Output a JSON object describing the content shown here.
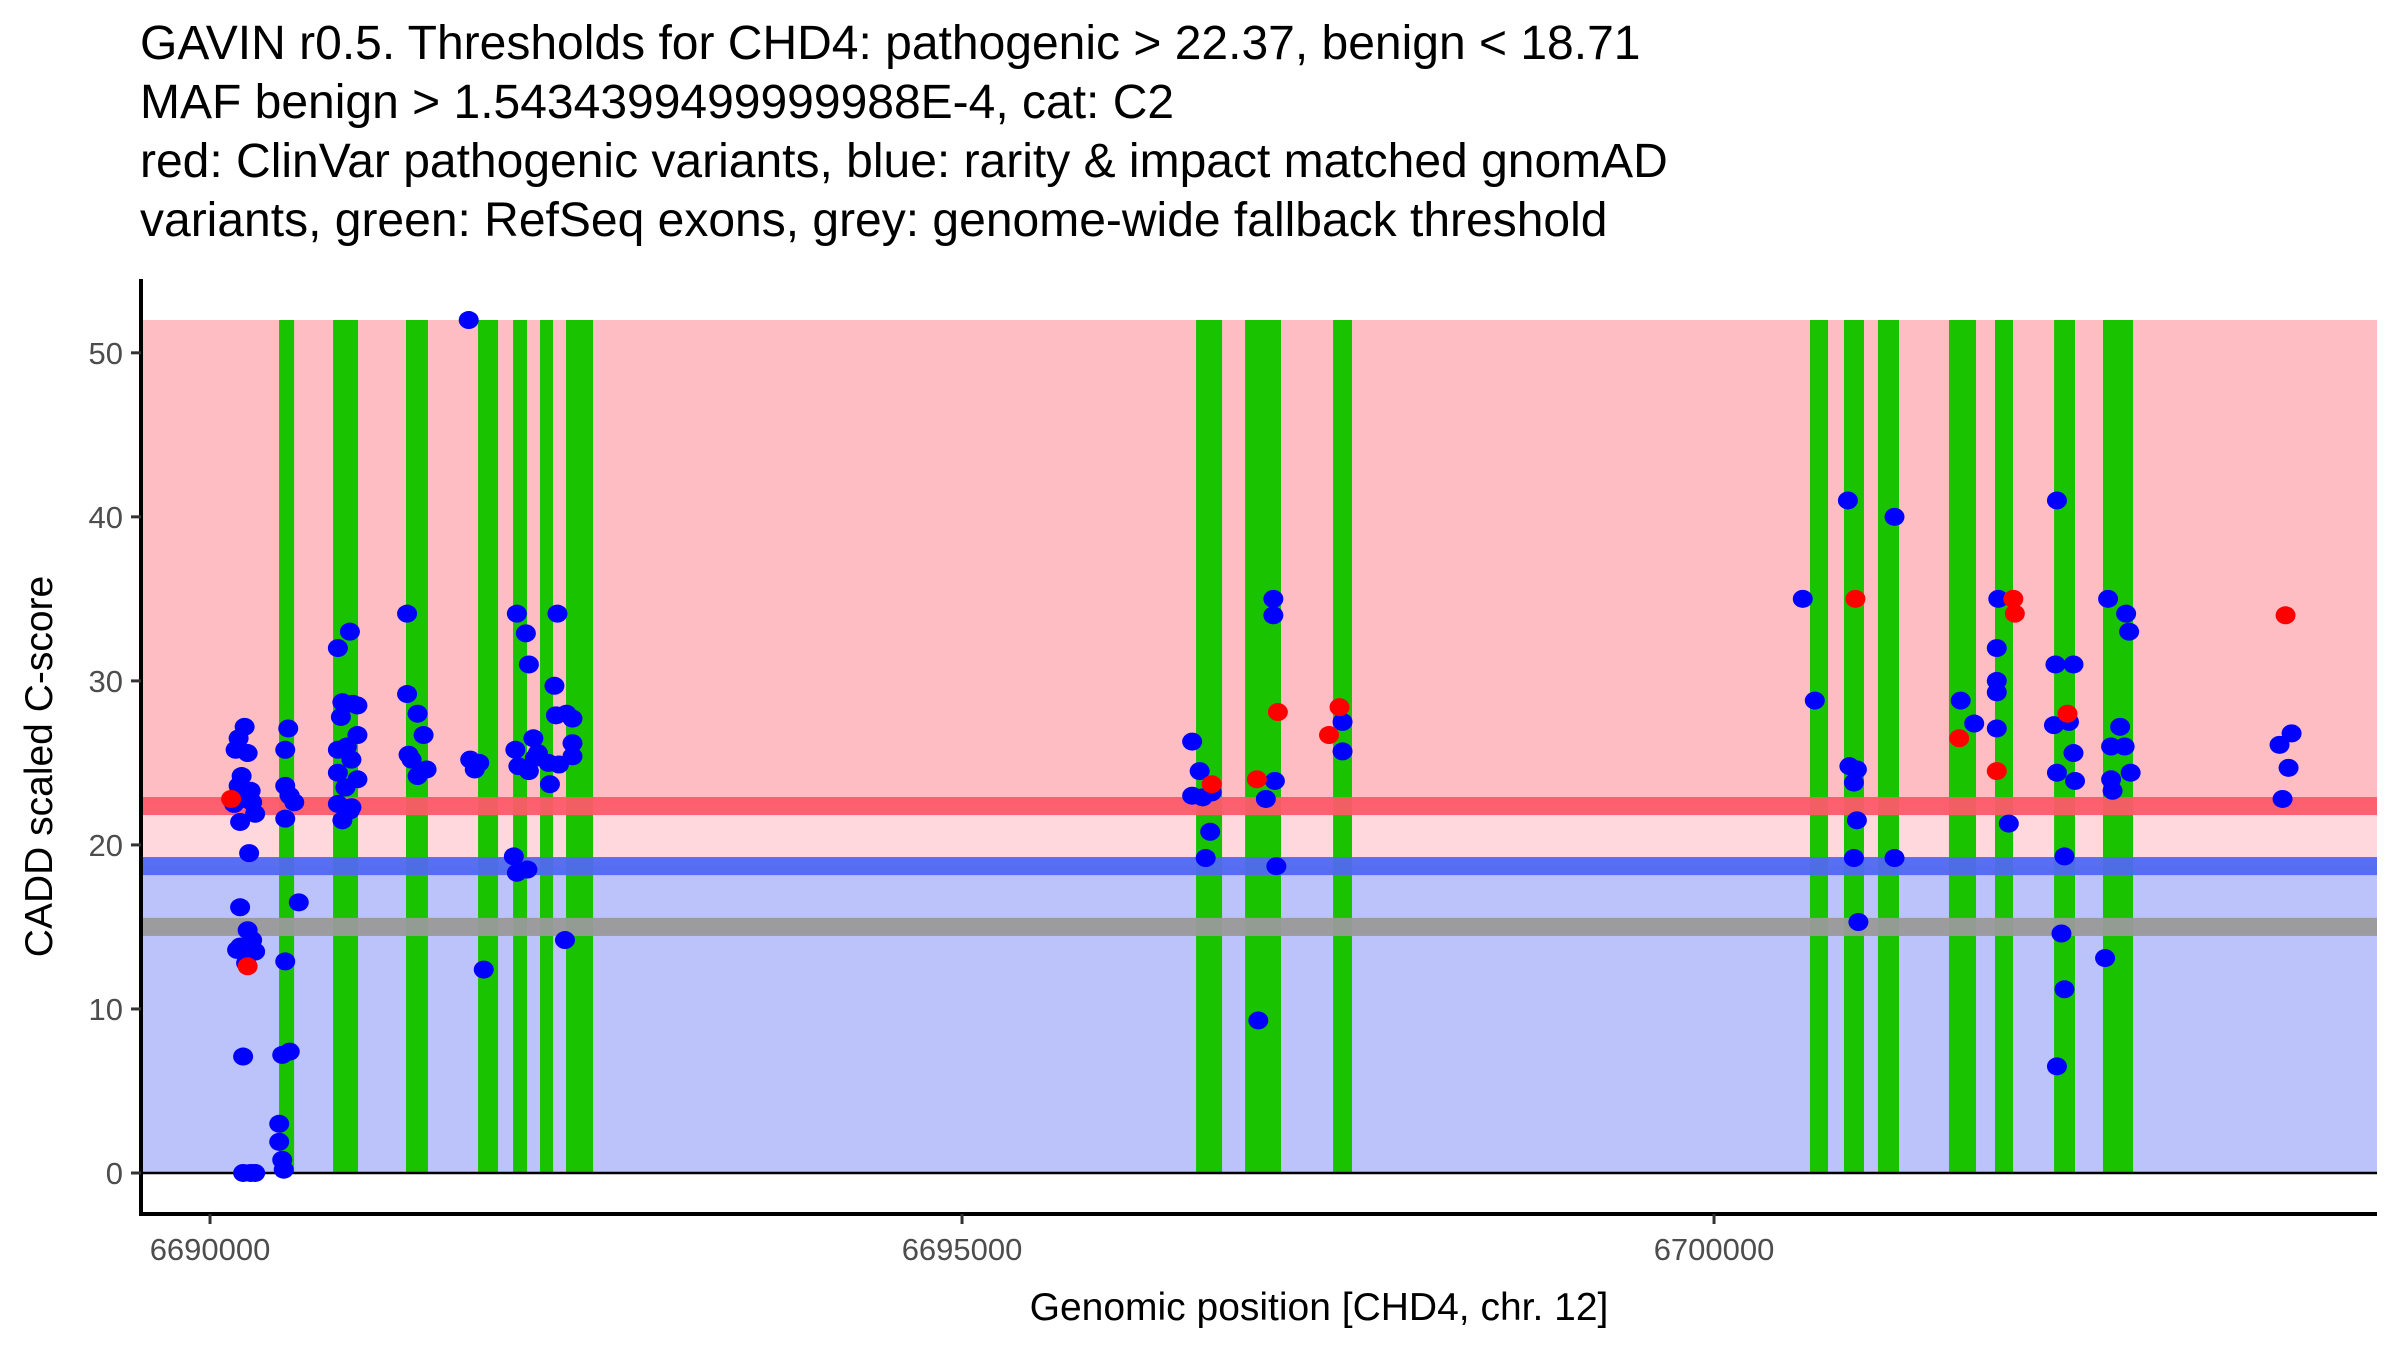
{
  "chart_data": {
    "type": "scatter",
    "title_lines": [
      "GAVIN r0.5. Thresholds for CHD4: pathogenic > 22.37, benign < 18.71",
      "MAF benign > 1.5434399499999988E-4, cat: C2",
      "red: ClinVar pathogenic variants, blue: rarity & impact matched gnomAD",
      "variants, green: RefSeq exons, grey: genome-wide fallback threshold"
    ],
    "xlabel": "Genomic position [CHD4, chr. 12]",
    "ylabel": "CADD scaled C-score",
    "xlim": [
      6689541,
      6704408
    ],
    "ylim": [
      -2.5,
      54.5
    ],
    "x_ticks": [
      6690000,
      6695000,
      6700000
    ],
    "x_tick_labels": [
      "6690000",
      "6695000",
      "6700000"
    ],
    "y_ticks": [
      0,
      10,
      20,
      30,
      40,
      50
    ],
    "y_tick_labels": [
      "0",
      "10",
      "20",
      "30",
      "40",
      "50"
    ],
    "grid": false,
    "legend": "none",
    "colors": {
      "pathogenic_region": "#fdbdc3",
      "vus_region": "#fed8dc",
      "benign_region": "#bcc2fa",
      "pathogenic_threshold": "#fd5a6a",
      "benign_threshold": "#5068f1",
      "fallback_threshold": "#9a9a9a",
      "exon": "#1ac300",
      "clinvar_point": "#ff0000",
      "gnomad_point": "#0000ff"
    },
    "regions": {
      "pathogenic": {
        "from": 22.37,
        "to": 52
      },
      "vus": {
        "from": 18.71,
        "to": 22.37
      },
      "benign": {
        "from": 0,
        "to": 18.71
      }
    },
    "thresholds": {
      "pathogenic": 22.37,
      "benign": 18.71,
      "fallback": 15
    },
    "exons": [
      [
        6690459,
        6690559
      ],
      [
        6690818,
        6690984
      ],
      [
        6691303,
        6691449
      ],
      [
        6691782,
        6691915
      ],
      [
        6692015,
        6692108
      ],
      [
        6692194,
        6692281
      ],
      [
        6692367,
        6692547
      ],
      [
        6696556,
        6696729
      ],
      [
        6696882,
        6697121
      ],
      [
        6697467,
        6697593
      ],
      [
        6700638,
        6700758
      ],
      [
        6700864,
        6700997
      ],
      [
        6701090,
        6701230
      ],
      [
        6701562,
        6701742
      ],
      [
        6701868,
        6701988
      ],
      [
        6702261,
        6702400
      ],
      [
        6702586,
        6702786
      ]
    ],
    "series": [
      {
        "name": "gnomAD",
        "color": "#0000ff",
        "points": [
          [
            6690190,
            26.5
          ],
          [
            6690230,
            27.2
          ],
          [
            6690170,
            25.8
          ],
          [
            6690250,
            25.6
          ],
          [
            6690210,
            24.2
          ],
          [
            6690190,
            23.6
          ],
          [
            6690270,
            23.3
          ],
          [
            6690230,
            22.8
          ],
          [
            6690160,
            22.5
          ],
          [
            6690280,
            22.6
          ],
          [
            6690200,
            21.4
          ],
          [
            6690300,
            21.9
          ],
          [
            6690260,
            19.5
          ],
          [
            6690200,
            16.2
          ],
          [
            6690200,
            13.8
          ],
          [
            6690250,
            14.8
          ],
          [
            6690280,
            14.2
          ],
          [
            6690180,
            13.6
          ],
          [
            6690300,
            13.5
          ],
          [
            6690240,
            12.8
          ],
          [
            6690220,
            7.1
          ],
          [
            6690220,
            0.0
          ],
          [
            6690270,
            0.0
          ],
          [
            6690300,
            0.0
          ],
          [
            6690520,
            27.1
          ],
          [
            6690500,
            25.8
          ],
          [
            6690500,
            23.6
          ],
          [
            6690530,
            23.0
          ],
          [
            6690560,
            22.6
          ],
          [
            6690500,
            21.6
          ],
          [
            6690590,
            16.5
          ],
          [
            6690500,
            12.9
          ],
          [
            6690480,
            7.2
          ],
          [
            6690530,
            7.4
          ],
          [
            6690460,
            3.0
          ],
          [
            6690460,
            1.9
          ],
          [
            6690480,
            0.8
          ],
          [
            6690490,
            0.2
          ],
          [
            6690850,
            32.0
          ],
          [
            6690930,
            33.0
          ],
          [
            6690880,
            28.7
          ],
          [
            6690980,
            28.5
          ],
          [
            6690870,
            27.8
          ],
          [
            6690950,
            28.6
          ],
          [
            6690980,
            26.7
          ],
          [
            6690850,
            25.8
          ],
          [
            6690910,
            26.0
          ],
          [
            6690940,
            25.2
          ],
          [
            6690850,
            24.4
          ],
          [
            6690900,
            23.5
          ],
          [
            6690980,
            24.0
          ],
          [
            6690850,
            22.5
          ],
          [
            6690930,
            22.1
          ],
          [
            6690880,
            21.5
          ],
          [
            6690940,
            22.3
          ],
          [
            6691310,
            34.1
          ],
          [
            6691310,
            29.2
          ],
          [
            6691380,
            28.0
          ],
          [
            6691340,
            25.2
          ],
          [
            6691380,
            24.2
          ],
          [
            6691320,
            25.5
          ],
          [
            6691420,
            26.7
          ],
          [
            6691440,
            24.6
          ],
          [
            6691720,
            52.0
          ],
          [
            6691730,
            25.2
          ],
          [
            6691790,
            25.0
          ],
          [
            6691760,
            24.6
          ],
          [
            6691820,
            12.4
          ],
          [
            6692040,
            34.1
          ],
          [
            6692100,
            32.9
          ],
          [
            6692120,
            31.0
          ],
          [
            6692030,
            25.8
          ],
          [
            6692020,
            19.3
          ],
          [
            6692040,
            18.3
          ],
          [
            6692110,
            18.5
          ],
          [
            6692150,
            26.5
          ],
          [
            6692160,
            25.3
          ],
          [
            6692180,
            25.6
          ],
          [
            6692120,
            24.5
          ],
          [
            6692050,
            24.8
          ],
          [
            6692250,
            25.0
          ],
          [
            6692310,
            34.1
          ],
          [
            6692290,
            29.7
          ],
          [
            6692370,
            28.0
          ],
          [
            6692300,
            27.9
          ],
          [
            6692410,
            27.7
          ],
          [
            6692260,
            23.7
          ],
          [
            6692410,
            26.2
          ],
          [
            6692410,
            25.4
          ],
          [
            6692320,
            24.9
          ],
          [
            6692360,
            14.2
          ],
          [
            6696530,
            26.3
          ],
          [
            6696580,
            24.5
          ],
          [
            6696530,
            23.0
          ],
          [
            6696600,
            22.9
          ],
          [
            6696660,
            23.2
          ],
          [
            6696650,
            20.8
          ],
          [
            6696620,
            19.2
          ],
          [
            6697070,
            35.0
          ],
          [
            6697070,
            34.0
          ],
          [
            6697080,
            23.9
          ],
          [
            6697020,
            22.8
          ],
          [
            6697090,
            18.7
          ],
          [
            6696970,
            9.3
          ],
          [
            6697530,
            27.5
          ],
          [
            6697530,
            25.7
          ],
          [
            6700590,
            35.0
          ],
          [
            6700670,
            28.8
          ],
          [
            6700890,
            41.0
          ],
          [
            6700900,
            24.8
          ],
          [
            6700950,
            24.6
          ],
          [
            6700930,
            23.8
          ],
          [
            6700950,
            21.5
          ],
          [
            6700930,
            19.2
          ],
          [
            6700960,
            15.3
          ],
          [
            6701200,
            40.0
          ],
          [
            6701200,
            19.2
          ],
          [
            6701640,
            28.8
          ],
          [
            6701730,
            27.4
          ],
          [
            6701890,
            35.0
          ],
          [
            6701880,
            32.0
          ],
          [
            6701880,
            30.0
          ],
          [
            6701880,
            29.3
          ],
          [
            6701880,
            27.1
          ],
          [
            6701960,
            21.3
          ],
          [
            6702280,
            41.0
          ],
          [
            6702270,
            31.0
          ],
          [
            6702390,
            31.0
          ],
          [
            6702260,
            27.3
          ],
          [
            6702360,
            27.5
          ],
          [
            6702390,
            25.6
          ],
          [
            6702280,
            24.4
          ],
          [
            6702400,
            23.9
          ],
          [
            6702330,
            19.3
          ],
          [
            6702310,
            14.6
          ],
          [
            6702330,
            11.2
          ],
          [
            6702280,
            6.5
          ],
          [
            6702620,
            35.0
          ],
          [
            6702740,
            34.1
          ],
          [
            6702760,
            33.0
          ],
          [
            6702640,
            26.0
          ],
          [
            6702730,
            26.0
          ],
          [
            6702640,
            24.0
          ],
          [
            6702650,
            23.3
          ],
          [
            6702770,
            24.4
          ],
          [
            6702700,
            27.2
          ],
          [
            6702600,
            13.1
          ],
          [
            6703760,
            26.1
          ],
          [
            6703840,
            26.8
          ],
          [
            6703820,
            24.7
          ],
          [
            6703780,
            22.8
          ]
        ]
      },
      {
        "name": "ClinVar",
        "color": "#ff0000",
        "points": [
          [
            6690140,
            22.8
          ],
          [
            6690250,
            12.6
          ],
          [
            6696660,
            23.7
          ],
          [
            6696960,
            24.0
          ],
          [
            6697100,
            28.1
          ],
          [
            6697440,
            26.7
          ],
          [
            6697510,
            28.4
          ],
          [
            6700940,
            35.0
          ],
          [
            6701630,
            26.5
          ],
          [
            6701880,
            24.5
          ],
          [
            6701990,
            35.0
          ],
          [
            6702000,
            34.1
          ],
          [
            6702350,
            28.0
          ],
          [
            6703800,
            34.0
          ]
        ]
      }
    ]
  }
}
